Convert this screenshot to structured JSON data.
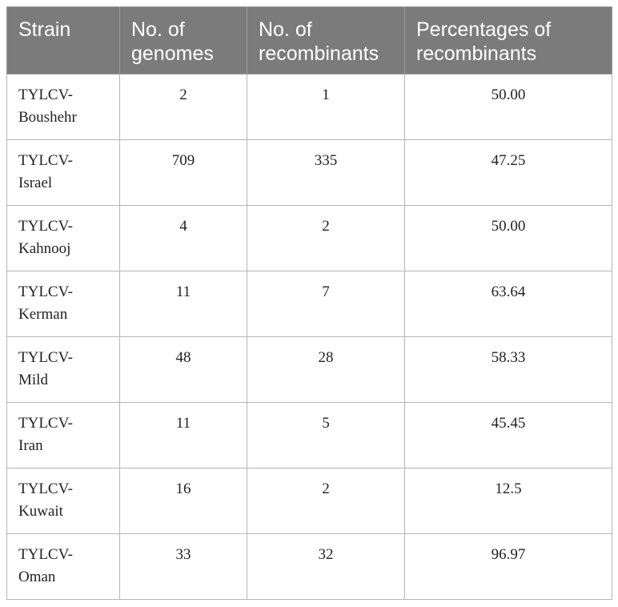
{
  "table": {
    "headers": [
      [
        "Strain"
      ],
      [
        "No. of",
        "genomes"
      ],
      [
        "No. of",
        "recombinants"
      ],
      [
        "Percentages of",
        "recombinants"
      ]
    ],
    "rows": [
      {
        "strain": [
          "TYLCV-",
          "Boushehr"
        ],
        "genomes": "2",
        "recombinants": "1",
        "percentage": "50.00"
      },
      {
        "strain": [
          "TYLCV-",
          "Israel"
        ],
        "genomes": "709",
        "recombinants": "335",
        "percentage": "47.25"
      },
      {
        "strain": [
          "TYLCV-",
          "Kahnooj"
        ],
        "genomes": "4",
        "recombinants": "2",
        "percentage": "50.00"
      },
      {
        "strain": [
          "TYLCV-",
          "Kerman"
        ],
        "genomes": "11",
        "recombinants": "7",
        "percentage": "63.64"
      },
      {
        "strain": [
          "TYLCV-",
          "Mild"
        ],
        "genomes": "48",
        "recombinants": "28",
        "percentage": "58.33"
      },
      {
        "strain": [
          "TYLCV-",
          "Iran"
        ],
        "genomes": "11",
        "recombinants": "5",
        "percentage": "45.45"
      },
      {
        "strain": [
          "TYLCV-",
          "Kuwait"
        ],
        "genomes": "16",
        "recombinants": "2",
        "percentage": "12.5"
      },
      {
        "strain": [
          "TYLCV-",
          "Oman"
        ],
        "genomes": "33",
        "recombinants": "32",
        "percentage": "96.97"
      }
    ]
  }
}
